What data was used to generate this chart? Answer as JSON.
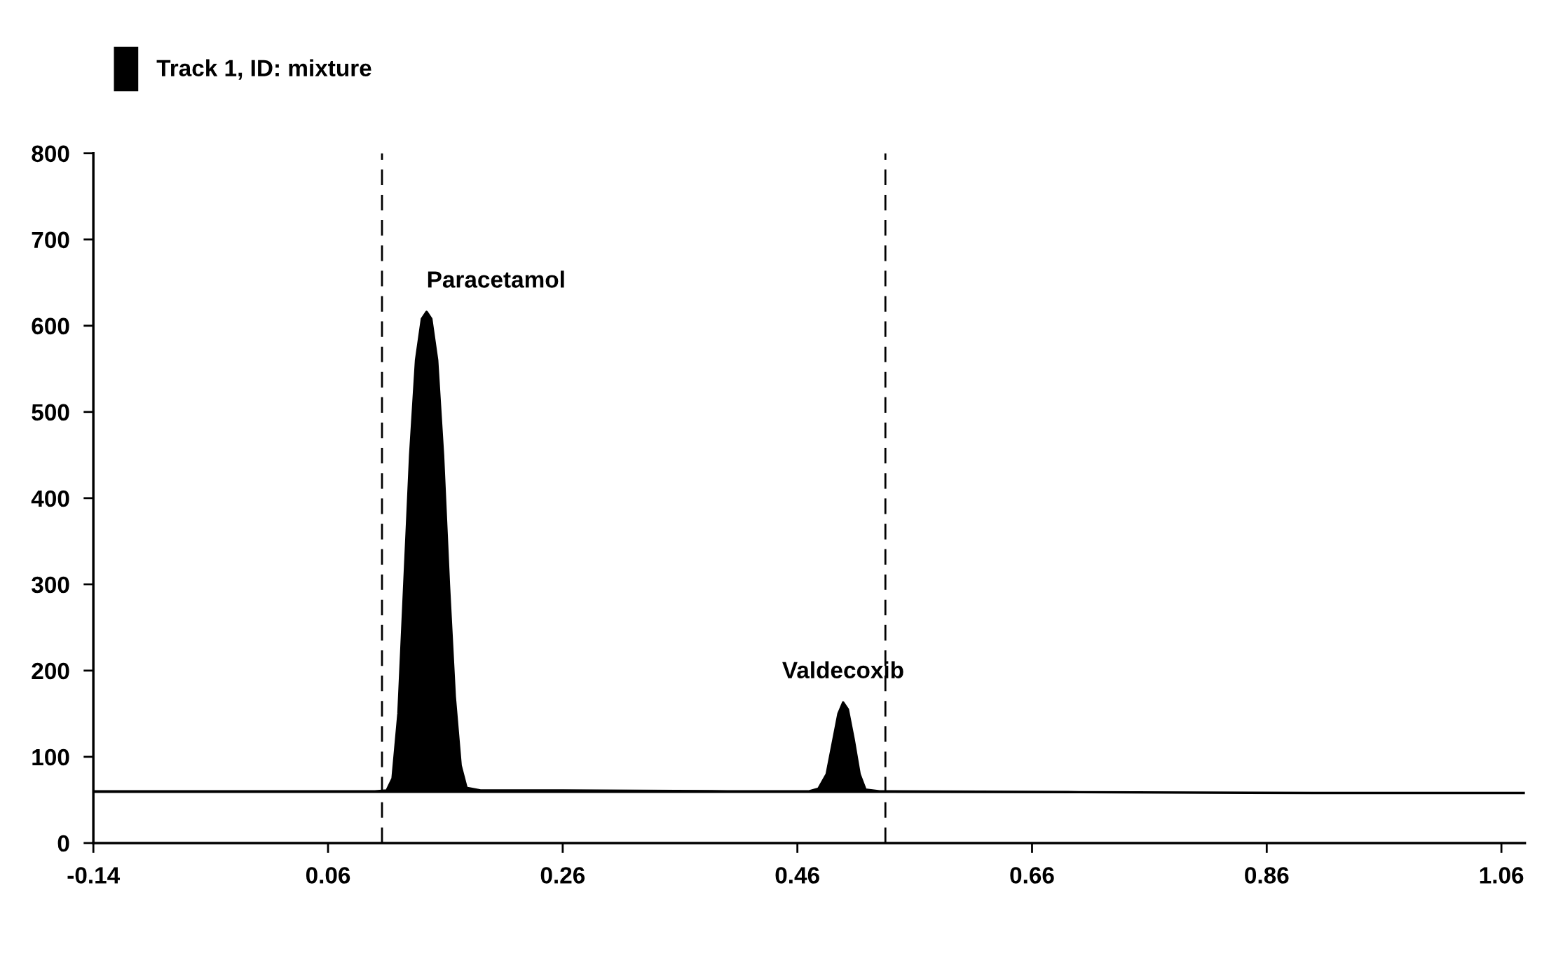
{
  "chart_data": {
    "type": "area",
    "xlim": [
      -0.14,
      1.08
    ],
    "ylim": [
      0,
      800
    ],
    "xticks": [
      -0.14,
      0.06,
      0.26,
      0.46,
      0.66,
      0.86,
      1.06
    ],
    "yticks": [
      0,
      100,
      200,
      300,
      400,
      500,
      600,
      700,
      800
    ],
    "grid": false,
    "legend": "top left",
    "series": [
      {
        "name": "Track 1, ID: mixture",
        "color": "#000000",
        "x": [
          -0.14,
          0.1,
          0.11,
          0.115,
          0.12,
          0.125,
          0.13,
          0.135,
          0.14,
          0.144,
          0.148,
          0.153,
          0.158,
          0.163,
          0.168,
          0.173,
          0.178,
          0.19,
          0.26,
          0.4,
          0.47,
          0.478,
          0.485,
          0.49,
          0.495,
          0.499,
          0.503,
          0.508,
          0.513,
          0.518,
          0.53,
          0.7,
          0.9,
          1.08
        ],
        "values": [
          60,
          60,
          61,
          75,
          150,
          300,
          450,
          560,
          608,
          616,
          608,
          560,
          450,
          300,
          170,
          90,
          64,
          61,
          61,
          60,
          60,
          63,
          80,
          115,
          150,
          163,
          155,
          120,
          80,
          62,
          60,
          59,
          58,
          58
        ]
      }
    ],
    "ref_lines": [
      {
        "axis": "x",
        "value": 0.106,
        "color": "#000000",
        "line_style": "dashed"
      },
      {
        "axis": "x",
        "value": 0.535,
        "color": "#000000",
        "line_style": "dashed"
      }
    ],
    "annotations": [
      {
        "text": "Paracetamol",
        "x": 0.144,
        "y": 616
      },
      {
        "text": "Valdecoxib",
        "x": 0.499,
        "y": 163
      }
    ]
  }
}
